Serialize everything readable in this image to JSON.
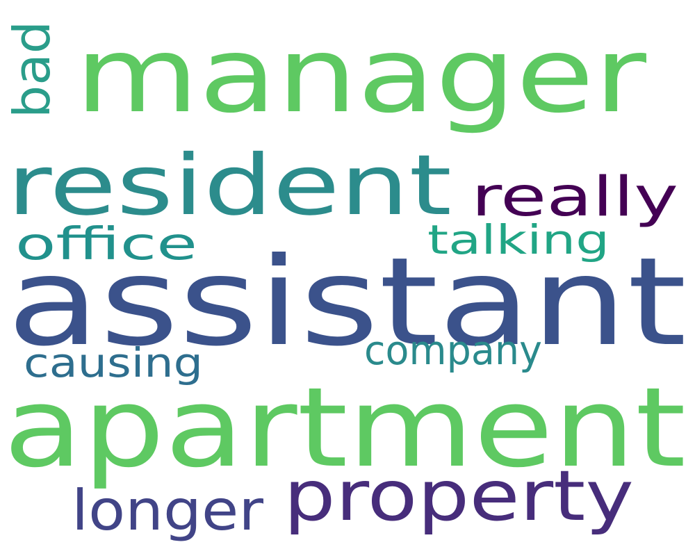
{
  "words": [
    {
      "text": "manager",
      "color": "#5ec962"
    },
    {
      "text": "assistant",
      "color": "#3b528b"
    },
    {
      "text": "apartment",
      "color": "#5ec962"
    },
    {
      "text": "resident",
      "color": "#2c8c8c"
    },
    {
      "text": "property",
      "color": "#472d7b"
    },
    {
      "text": "really",
      "color": "#440154"
    },
    {
      "text": "office",
      "color": "#21918c"
    },
    {
      "text": "talking",
      "color": "#21a585"
    },
    {
      "text": "company",
      "color": "#2a8a8c"
    },
    {
      "text": "causing",
      "color": "#2e6e8e"
    },
    {
      "text": "longer",
      "color": "#414487"
    },
    {
      "text": "bad",
      "color": "#2a9d8a"
    }
  ]
}
